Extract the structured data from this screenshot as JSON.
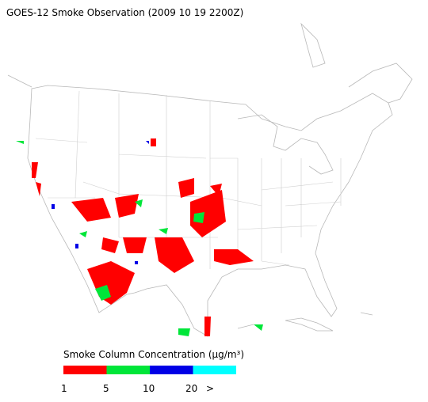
{
  "title": "GOES-12 Smoke Observation (2009 10 19  2200Z)",
  "legend": {
    "title": "Smoke Column Concentration (μg/m³)",
    "colors": [
      "#ff0000",
      "#00e639",
      "#0000e6",
      "#00ffff"
    ],
    "labels": [
      "1",
      "5",
      "10",
      "20",
      ">"
    ]
  }
}
